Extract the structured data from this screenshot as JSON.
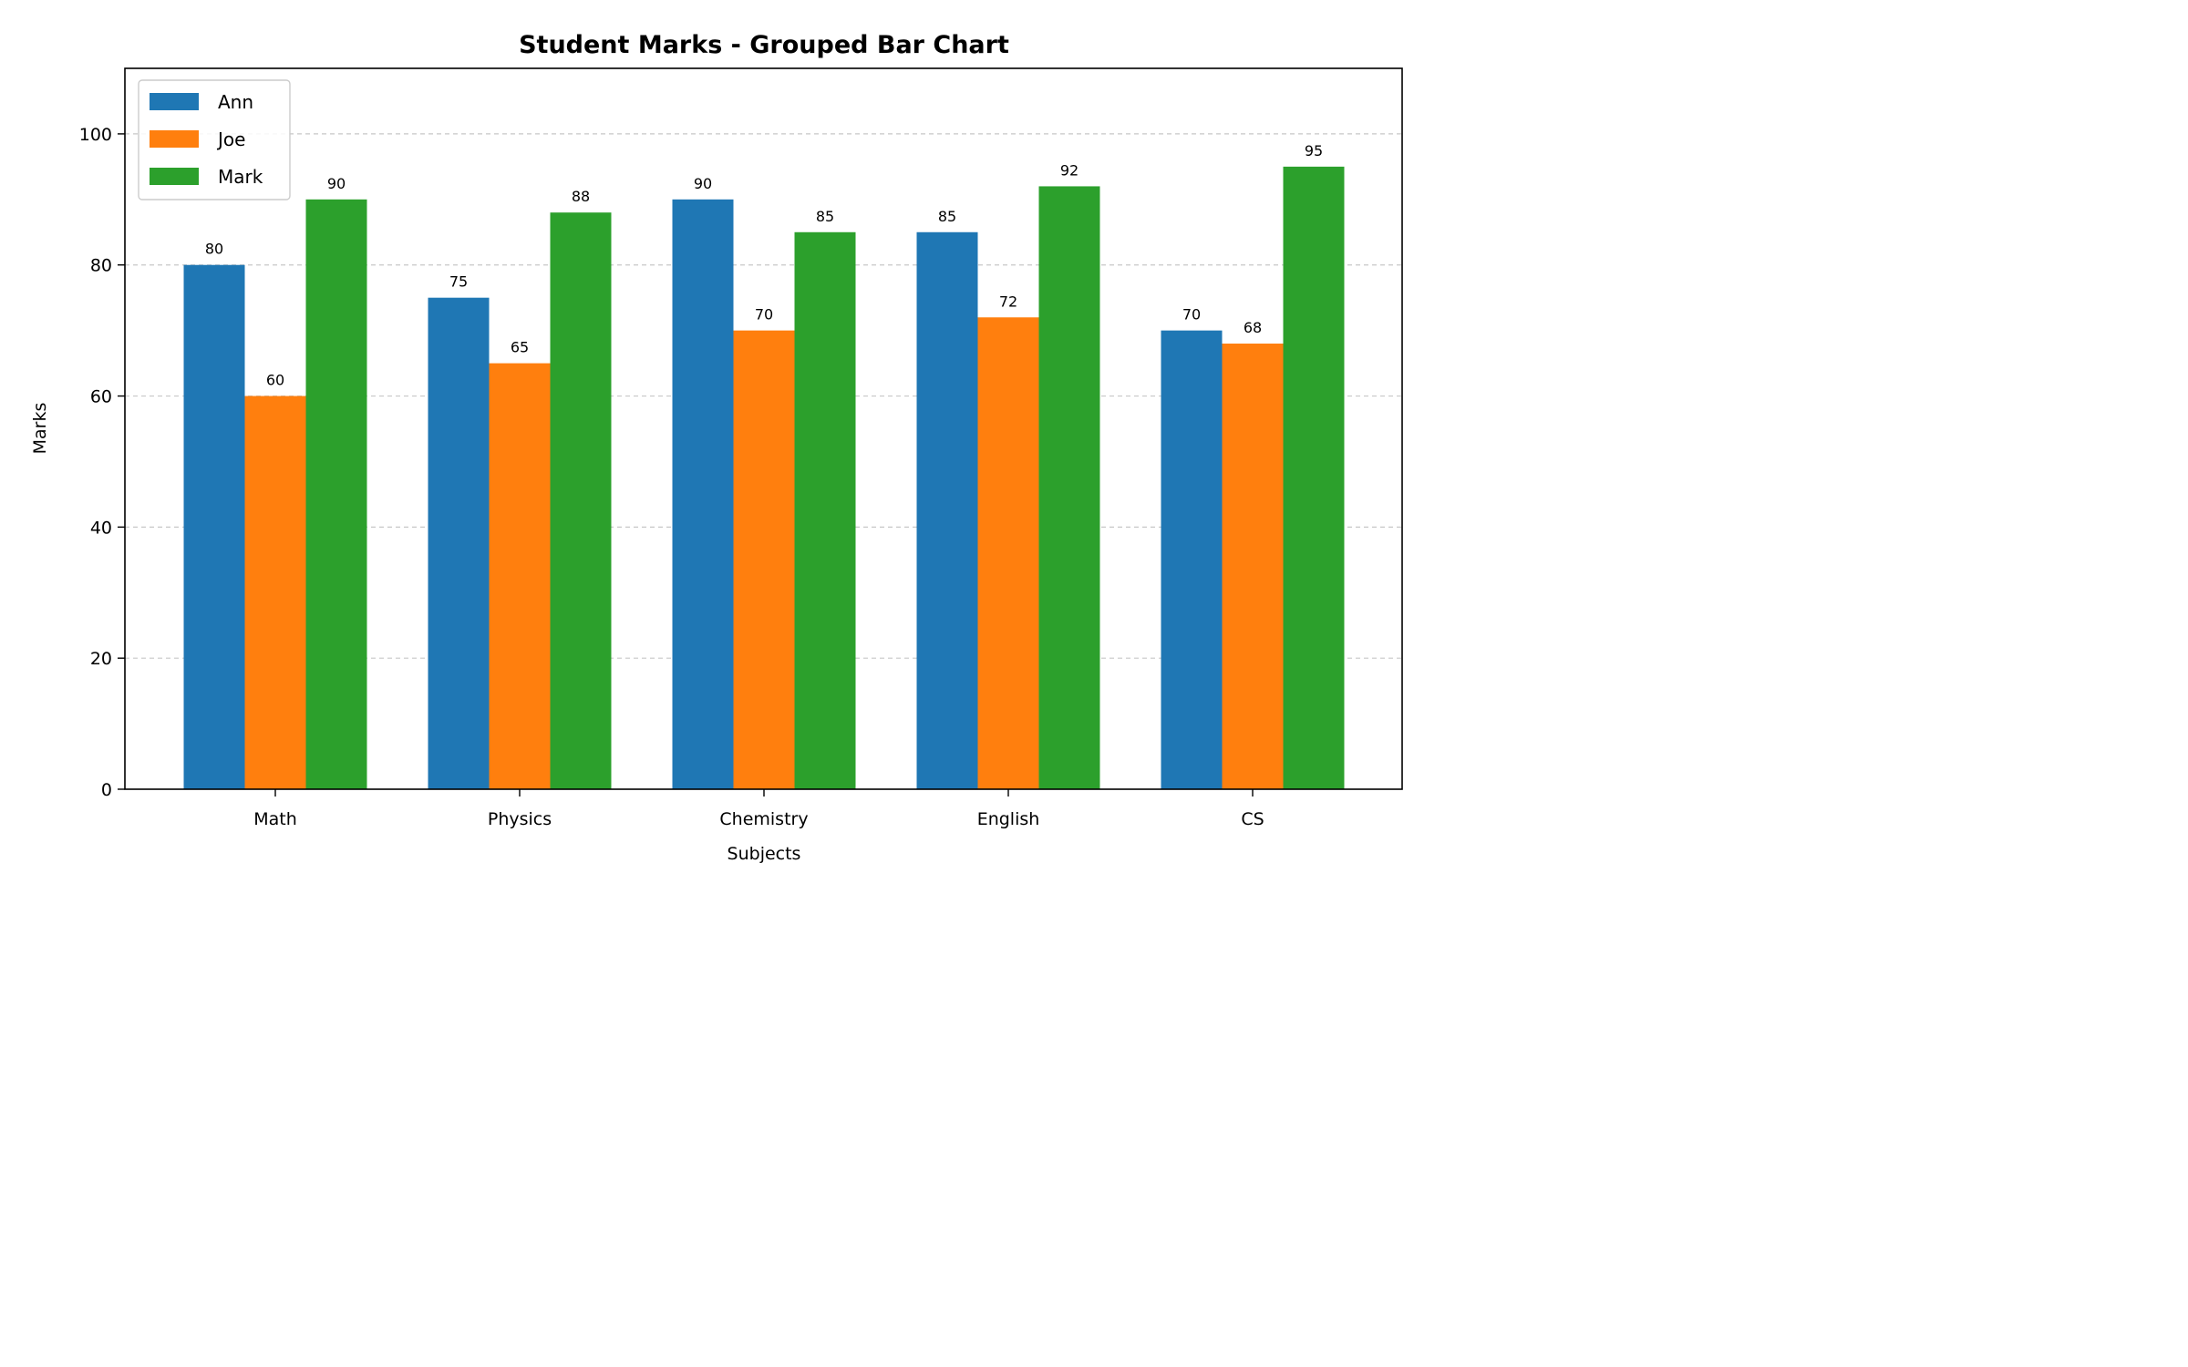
{
  "chart_data": {
    "type": "bar",
    "title": "Student Marks - Grouped Bar Chart",
    "xlabel": "Subjects",
    "ylabel": "Marks",
    "categories": [
      "Math",
      "Physics",
      "Chemistry",
      "English",
      "CS"
    ],
    "series": [
      {
        "name": "Ann",
        "color": "#1f77b4",
        "values": [
          80,
          75,
          90,
          85,
          70
        ]
      },
      {
        "name": "Joe",
        "color": "#ff7f0e",
        "values": [
          60,
          65,
          70,
          72,
          68
        ]
      },
      {
        "name": "Mark",
        "color": "#2ca02c",
        "values": [
          90,
          88,
          85,
          92,
          95
        ]
      }
    ],
    "ylim": [
      0,
      110
    ],
    "yticks": [
      0,
      20,
      40,
      60,
      80,
      100
    ],
    "grid": "y",
    "legend_position": "top-left",
    "data_labels": true
  }
}
